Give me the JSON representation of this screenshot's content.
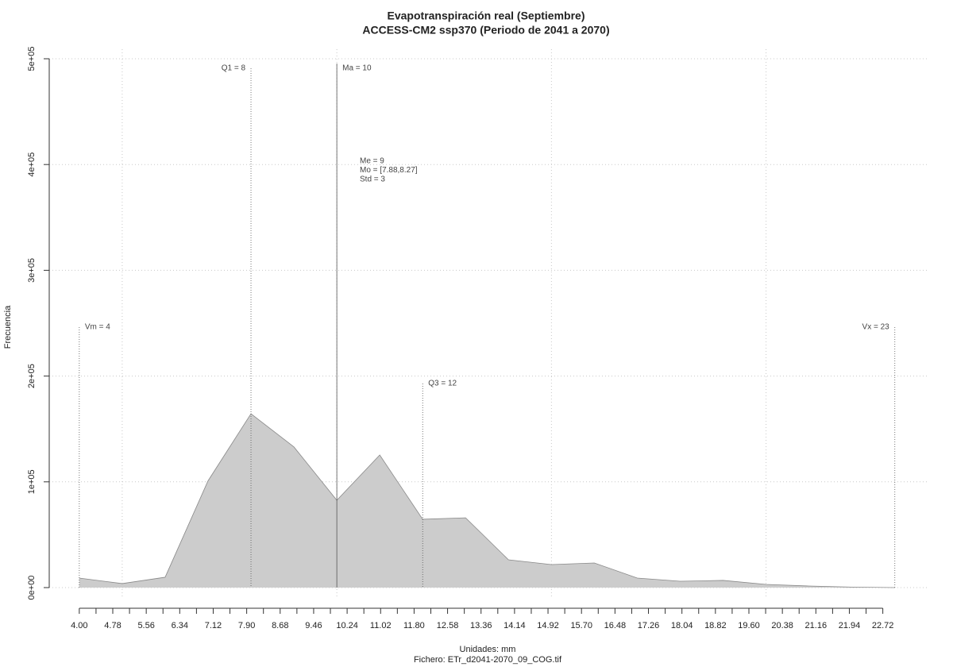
{
  "chart_data": {
    "type": "area",
    "title": "Evapotranspiración real (Septiembre)",
    "subtitle": "ACCESS-CM2 ssp370 (Periodo de 2041 a 2070)",
    "x_label": "Unidades: mm",
    "caption": "Fichero: ETr_d2041-2070_09_COG.tif",
    "y_label": "Frecuencia",
    "x": [
      4,
      5,
      6,
      7,
      8,
      9,
      10,
      11,
      12,
      13,
      14,
      15,
      16,
      17,
      18,
      19,
      20,
      21,
      22,
      23
    ],
    "values": [
      9000,
      3800,
      9800,
      101000,
      164400,
      133000,
      82600,
      125400,
      64600,
      66000,
      26300,
      21800,
      23300,
      9000,
      6000,
      6800,
      3000,
      1500,
      500,
      0
    ],
    "color": "#cccccc",
    "line_color": "#888888",
    "xlim": [
      3.3,
      23.8
    ],
    "ylim": [
      -9000,
      509000
    ],
    "xticks": [
      {
        "value": 4.0,
        "label": "4.00"
      },
      4.78,
      5.56,
      6.34,
      7.12,
      {
        "value": 7.9,
        "label": "7.90"
      },
      8.68,
      9.46,
      10.24,
      11.02,
      {
        "value": 11.8,
        "label": "11.80"
      },
      12.58,
      13.36,
      14.14,
      14.92,
      {
        "value": 15.7,
        "label": "15.70"
      },
      16.48,
      17.26,
      18.04,
      18.82,
      {
        "value": 19.6,
        "label": "19.60"
      },
      20.38,
      21.16,
      21.94,
      22.72
    ],
    "xticks_minor": [
      4.39,
      5.17,
      5.95,
      6.73,
      7.51,
      8.29,
      9.07,
      9.85,
      10.63,
      11.41,
      12.19,
      12.97,
      13.75,
      14.53,
      15.31,
      16.09,
      16.87,
      17.65,
      18.43,
      19.21,
      19.99,
      20.77,
      21.55,
      22.33
    ],
    "yticks": [
      {
        "value": 0,
        "label": "0e+00"
      },
      {
        "value": 100000,
        "label": "1e+05"
      },
      {
        "value": 200000,
        "label": "2e+05"
      },
      {
        "value": 300000,
        "label": "3e+05"
      },
      {
        "value": 400000,
        "label": "4e+05"
      },
      {
        "value": 500000,
        "label": "5e+05"
      }
    ],
    "xgrid": [
      5,
      10,
      15,
      20
    ],
    "grid": true,
    "markers": [
      {
        "label": "Vm = 4",
        "value": 4
      },
      {
        "label": "Q1 = 8",
        "value": 8
      },
      {
        "label": "Ma = 10",
        "value": 10
      },
      {
        "label": "Q3 = 12",
        "value": 12
      },
      {
        "label": "Vx = 23",
        "value": 23
      }
    ],
    "annotations": [
      "Me = 9",
      "Mo = [7.88,8.27]",
      "Std = 3"
    ]
  }
}
